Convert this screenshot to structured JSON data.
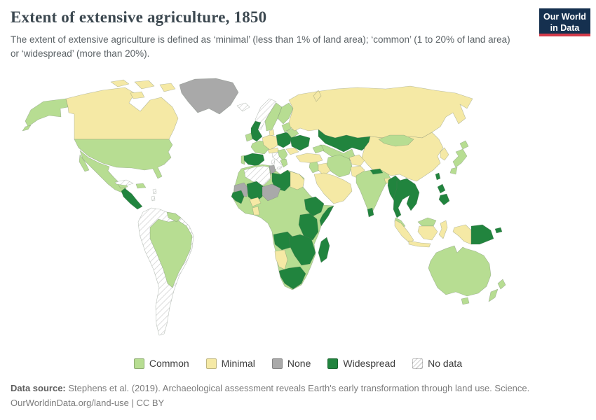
{
  "header": {
    "title": "Extent of extensive agriculture, 1850",
    "subtitle": "The extent of extensive agriculture is defined as ‘minimal’ (less than 1% of land area); ‘common’ (1 to 20% of land area) or ‘widespread’ (more than 20%).",
    "logo": {
      "line1": "Our World",
      "line2": "in Data",
      "bg_color": "#15304f",
      "accent_color": "#d43b4a"
    }
  },
  "legend": {
    "items": [
      {
        "label": "Common",
        "category": "common"
      },
      {
        "label": "Minimal",
        "category": "minimal"
      },
      {
        "label": "None",
        "category": "none"
      },
      {
        "label": "Widespread",
        "category": "widespread"
      },
      {
        "label": "No data",
        "category": "nodata"
      }
    ]
  },
  "footer": {
    "source_label": "Data source:",
    "source_text": " Stephens et al. (2019). Archaeological assessment reveals Earth's early transformation through land use. Science.",
    "license_line": "OurWorldinData.org/land-use | CC BY"
  },
  "chart_data": {
    "type": "choropleth",
    "title": "Extent of extensive agriculture, 1850",
    "categories": [
      "Common",
      "Minimal",
      "None",
      "Widespread",
      "No data"
    ],
    "category_colors": {
      "common": "#b7dd92",
      "minimal": "#f5e9a5",
      "none": "#a9a9a9",
      "widespread": "#21843e",
      "nodata": "hatch"
    },
    "regions": [
      {
        "id": "alaska",
        "name": "Alaska (United States)",
        "category": "common"
      },
      {
        "id": "canada",
        "name": "Canada",
        "category": "minimal"
      },
      {
        "id": "canadian-arctic",
        "name": "Canadian Arctic Islands",
        "category": "minimal"
      },
      {
        "id": "greenland",
        "name": "Greenland",
        "category": "none"
      },
      {
        "id": "united-states",
        "name": "United States",
        "category": "common"
      },
      {
        "id": "mexico",
        "name": "Mexico",
        "category": "common"
      },
      {
        "id": "central-america",
        "name": "Central America",
        "category": "widespread"
      },
      {
        "id": "cuba",
        "name": "Cuba",
        "category": "nodata"
      },
      {
        "id": "hispaniola",
        "name": "Hispaniola",
        "category": "common"
      },
      {
        "id": "lesser-antilles",
        "name": "Lesser Antilles",
        "category": "nodata"
      },
      {
        "id": "guyanas",
        "name": "Guyanas",
        "category": "common"
      },
      {
        "id": "brazil",
        "name": "Brazil",
        "category": "common"
      },
      {
        "id": "andean-south-america",
        "name": "Western & Southern South America",
        "category": "nodata"
      },
      {
        "id": "iceland",
        "name": "Iceland",
        "category": "nodata"
      },
      {
        "id": "norway",
        "name": "Norway",
        "category": "nodata"
      },
      {
        "id": "sweden",
        "name": "Sweden",
        "category": "common"
      },
      {
        "id": "finland",
        "name": "Finland",
        "category": "common"
      },
      {
        "id": "denmark",
        "name": "Denmark",
        "category": "minimal"
      },
      {
        "id": "united-kingdom",
        "name": "United Kingdom",
        "category": "widespread"
      },
      {
        "id": "ireland",
        "name": "Ireland",
        "category": "common"
      },
      {
        "id": "france",
        "name": "France",
        "category": "common"
      },
      {
        "id": "portugal",
        "name": "Portugal",
        "category": "common"
      },
      {
        "id": "spain",
        "name": "Spain",
        "category": "widespread"
      },
      {
        "id": "germany",
        "name": "Germany & Benelux",
        "category": "minimal"
      },
      {
        "id": "alpine",
        "name": "Switzerland & Austria",
        "category": "minimal"
      },
      {
        "id": "italy",
        "name": "Italy",
        "category": "nodata"
      },
      {
        "id": "poland-czechia",
        "name": "Poland & Czechia",
        "category": "widespread"
      },
      {
        "id": "baltics",
        "name": "Baltic states",
        "category": "common"
      },
      {
        "id": "belarus",
        "name": "Belarus",
        "category": "common"
      },
      {
        "id": "ukraine",
        "name": "Ukraine",
        "category": "widespread"
      },
      {
        "id": "romania",
        "name": "Romania",
        "category": "minimal"
      },
      {
        "id": "balkans",
        "name": "Western Balkans",
        "category": "common"
      },
      {
        "id": "greece",
        "name": "Greece",
        "category": "common"
      },
      {
        "id": "russia",
        "name": "Russia",
        "category": "minimal"
      },
      {
        "id": "kazakhstan",
        "name": "Kazakhstan",
        "category": "widespread"
      },
      {
        "id": "central-asia",
        "name": "Central Asia",
        "category": "common"
      },
      {
        "id": "caucasus",
        "name": "Caucasus",
        "category": "common"
      },
      {
        "id": "turkey",
        "name": "Turkey",
        "category": "minimal"
      },
      {
        "id": "levant",
        "name": "Levant",
        "category": "common"
      },
      {
        "id": "iraq",
        "name": "Iraq",
        "category": "minimal"
      },
      {
        "id": "iran",
        "name": "Iran",
        "category": "common"
      },
      {
        "id": "arabia",
        "name": "Arabian Peninsula",
        "category": "minimal"
      },
      {
        "id": "afghanistan",
        "name": "Afghanistan",
        "category": "minimal"
      },
      {
        "id": "pakistan",
        "name": "Pakistan",
        "category": "minimal"
      },
      {
        "id": "china",
        "name": "China",
        "category": "minimal"
      },
      {
        "id": "mongolia",
        "name": "Mongolia",
        "category": "common"
      },
      {
        "id": "korea",
        "name": "Korea",
        "category": "minimal"
      },
      {
        "id": "japan",
        "name": "Japan",
        "category": "common"
      },
      {
        "id": "taiwan",
        "name": "Taiwan",
        "category": "widespread"
      },
      {
        "id": "india",
        "name": "India",
        "category": "common"
      },
      {
        "id": "nepal",
        "name": "Nepal",
        "category": "widespread"
      },
      {
        "id": "bangladesh",
        "name": "Bangladesh",
        "category": "minimal"
      },
      {
        "id": "sri-lanka",
        "name": "Sri Lanka",
        "category": "widespread"
      },
      {
        "id": "myanmar",
        "name": "Myanmar",
        "category": "widespread"
      },
      {
        "id": "indochina",
        "name": "Thailand, Laos, Cambodia & Vietnam",
        "category": "widespread"
      },
      {
        "id": "malaysia",
        "name": "Peninsular Malaysia",
        "category": "common"
      },
      {
        "id": "sumatra",
        "name": "Sumatra (Indonesia)",
        "category": "minimal"
      },
      {
        "id": "java",
        "name": "Java (Indonesia)",
        "category": "minimal"
      },
      {
        "id": "malaysian-borneo",
        "name": "Malaysian Borneo",
        "category": "common"
      },
      {
        "id": "indonesian-borneo",
        "name": "Kalimantan (Indonesia)",
        "category": "minimal"
      },
      {
        "id": "sulawesi",
        "name": "Sulawesi (Indonesia)",
        "category": "minimal"
      },
      {
        "id": "west-papua",
        "name": "Western New Guinea (Indonesia)",
        "category": "minimal"
      },
      {
        "id": "papua-new-guinea",
        "name": "Papua New Guinea",
        "category": "widespread"
      },
      {
        "id": "philippines",
        "name": "Philippines",
        "category": "widespread"
      },
      {
        "id": "africa-common-belt",
        "name": "Africa — common belt (Morocco, Chad, Sudan, Nigeria, DR Congo & others)",
        "category": "common"
      },
      {
        "id": "algeria",
        "name": "Algeria",
        "category": "nodata"
      },
      {
        "id": "tunisia",
        "name": "Tunisia",
        "category": "none"
      },
      {
        "id": "libya",
        "name": "Libya",
        "category": "widespread"
      },
      {
        "id": "egypt",
        "name": "Egypt",
        "category": "minimal"
      },
      {
        "id": "mauritania",
        "name": "Mauritania",
        "category": "none"
      },
      {
        "id": "mali",
        "name": "Mali",
        "category": "widespread"
      },
      {
        "id": "niger",
        "name": "Niger",
        "category": "none"
      },
      {
        "id": "burkina-faso",
        "name": "Burkina Faso",
        "category": "minimal"
      },
      {
        "id": "ghana",
        "name": "Ghana",
        "category": "minimal"
      },
      {
        "id": "senegal-guinea",
        "name": "Senegal & Guinea",
        "category": "widespread"
      },
      {
        "id": "ethiopia",
        "name": "Ethiopia",
        "category": "widespread"
      },
      {
        "id": "somalia",
        "name": "Somalia",
        "category": "widespread"
      },
      {
        "id": "east-africa",
        "name": "Uganda, Kenya & Tanzania",
        "category": "widespread"
      },
      {
        "id": "angola",
        "name": "Angola",
        "category": "widespread"
      },
      {
        "id": "zambezi",
        "name": "Zambia, Zimbabwe & Mozambique",
        "category": "widespread"
      },
      {
        "id": "namibia",
        "name": "Namibia",
        "category": "minimal"
      },
      {
        "id": "south-africa",
        "name": "South Africa",
        "category": "widespread"
      },
      {
        "id": "madagascar",
        "name": "Madagascar",
        "category": "widespread"
      },
      {
        "id": "australia",
        "name": "Australia",
        "category": "common"
      },
      {
        "id": "tasmania",
        "name": "Tasmania",
        "category": "common"
      },
      {
        "id": "new-zealand",
        "name": "New Zealand",
        "category": "common"
      }
    ]
  }
}
